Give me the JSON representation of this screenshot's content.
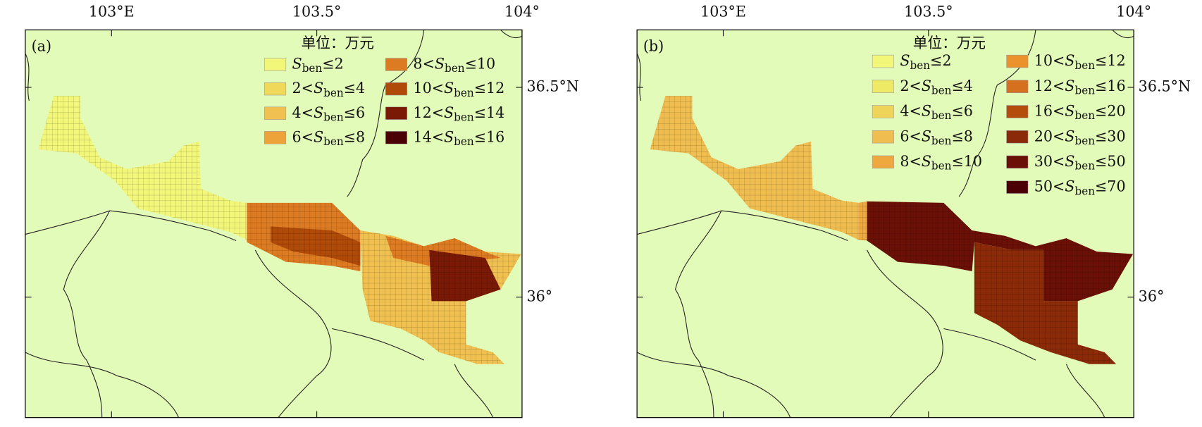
{
  "panels": [
    {
      "label": "(a)",
      "unit": "单位：万元",
      "symbol": "S",
      "subscript": "ben",
      "background": "#e3fbb8",
      "lon_range": [
        102.79,
        104
      ],
      "lat_range": [
        35.713,
        36.637
      ],
      "lon_ticks": [
        {
          "value": 103,
          "label": "103°E"
        },
        {
          "value": 103.5,
          "label": "103.5°"
        },
        {
          "value": 104,
          "label": "104°"
        }
      ],
      "lat_ticks": [
        {
          "value": 36.5,
          "label": "36.5°N"
        },
        {
          "value": 36,
          "label": "36°"
        }
      ],
      "legend": [
        {
          "after": "≤2",
          "color": "#f2f77a"
        },
        {
          "before": "2<",
          "after": "≤4",
          "color": "#efd85a"
        },
        {
          "before": "4<",
          "after": "≤6",
          "color": "#f0c050"
        },
        {
          "before": "6<",
          "after": "≤8",
          "color": "#eea23a"
        },
        {
          "before": "8<",
          "after": "≤10",
          "color": "#dd7b22"
        },
        {
          "before": "10<",
          "after": "≤12",
          "color": "#b04a08"
        },
        {
          "before": "12<",
          "after": "≤14",
          "color": "#7a1a06"
        },
        {
          "before": "14<",
          "after": "≤16",
          "color": "#4a0004"
        }
      ]
    },
    {
      "label": "(b)",
      "unit": "单位：万元",
      "symbol": "S",
      "subscript": "ben",
      "background": "#e3fbb8",
      "lon_range": [
        102.79,
        104
      ],
      "lat_range": [
        35.713,
        36.637
      ],
      "lon_ticks": [
        {
          "value": 103,
          "label": "103°E"
        },
        {
          "value": 103.5,
          "label": "103.5°"
        },
        {
          "value": 104,
          "label": "104°"
        }
      ],
      "lat_ticks": [
        {
          "value": 36.5,
          "label": "36.5°N"
        },
        {
          "value": 36,
          "label": "36°"
        }
      ],
      "legend": [
        {
          "after": "≤2",
          "color": "#f2f77a"
        },
        {
          "before": "2<",
          "after": "≤4",
          "color": "#efea66"
        },
        {
          "before": "4<",
          "after": "≤6",
          "color": "#efd45a"
        },
        {
          "before": "6<",
          "after": "≤8",
          "color": "#f0be50"
        },
        {
          "before": "8<",
          "after": "≤10",
          "color": "#efa83e"
        },
        {
          "before": "10<",
          "after": "≤12",
          "color": "#ec922c"
        },
        {
          "before": "12<",
          "after": "≤16",
          "color": "#d5701e"
        },
        {
          "before": "16<",
          "after": "≤20",
          "color": "#b44c0c"
        },
        {
          "before": "20<",
          "after": "≤30",
          "color": "#8a2a08"
        },
        {
          "before": "30<",
          "after": "≤50",
          "color": "#6a1006"
        },
        {
          "before": "50<",
          "after": "≤70",
          "color": "#4a0004"
        }
      ]
    }
  ]
}
